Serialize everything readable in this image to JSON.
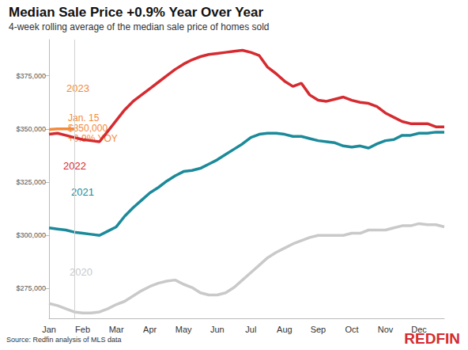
{
  "chart_data": {
    "type": "line",
    "title": "Median Sale Price +0.9% Year Over Year",
    "subtitle": "4-week rolling average of the median sale price of homes sold",
    "source": "Source: Redfin analysis of MLS data",
    "logo": "REDFIN",
    "annotation": [
      "Jan. 15",
      "$350,000",
      "+0.9% YOY"
    ],
    "categories": [
      "Jan",
      null,
      null,
      null,
      "Feb",
      null,
      null,
      null,
      "Mar",
      null,
      null,
      null,
      "Apr",
      null,
      null,
      null,
      "May",
      null,
      null,
      null,
      "Jun",
      null,
      null,
      null,
      "Jul",
      null,
      null,
      null,
      "Aug",
      null,
      null,
      null,
      "Sep",
      null,
      null,
      null,
      "Oct",
      null,
      null,
      null,
      "Nov",
      null,
      null,
      null,
      "Dec",
      null,
      null,
      null
    ],
    "series": [
      {
        "name": "2020",
        "color": "#c9c9c9",
        "values": [
          268000,
          267000,
          265500,
          264000,
          263500,
          263500,
          264000,
          265500,
          267500,
          269000,
          271500,
          274000,
          276000,
          277500,
          278500,
          279000,
          277000,
          275500,
          273000,
          272000,
          272000,
          273000,
          275500,
          279000,
          282500,
          286000,
          289500,
          292000,
          294000,
          296000,
          297500,
          299000,
          300000,
          300000,
          300000,
          300000,
          301000,
          301000,
          302500,
          302500,
          302500,
          303500,
          304500,
          304500,
          305500,
          305000,
          305000,
          304000
        ]
      },
      {
        "name": "2021",
        "color": "#1b8a9a",
        "values": [
          303500,
          303000,
          302500,
          301500,
          301000,
          300500,
          300000,
          302000,
          304000,
          309000,
          313000,
          316500,
          320000,
          322500,
          325500,
          328000,
          330000,
          330500,
          331500,
          333500,
          335500,
          338000,
          340500,
          343000,
          346000,
          347500,
          348000,
          348000,
          347500,
          346500,
          346500,
          345500,
          344500,
          344000,
          343500,
          342000,
          341500,
          342000,
          341000,
          343000,
          344500,
          345000,
          347000,
          347000,
          348000,
          348000,
          348500,
          348500
        ]
      },
      {
        "name": "2022",
        "color": "#d52b30",
        "values": [
          347500,
          348000,
          347000,
          346000,
          345000,
          344500,
          344000,
          349000,
          354000,
          359000,
          363000,
          366000,
          369000,
          372000,
          375000,
          378000,
          380500,
          382500,
          384000,
          385000,
          385500,
          386000,
          386500,
          387000,
          386000,
          384500,
          379000,
          376000,
          372500,
          370000,
          371500,
          366000,
          363500,
          363000,
          364000,
          365000,
          363500,
          362500,
          362000,
          360500,
          357500,
          355500,
          353500,
          352500,
          352500,
          352500,
          351000,
          351000
        ]
      },
      {
        "name": "2023",
        "color": "#f5893a",
        "values": [
          349800,
          350000,
          350000,
          350000,
          null,
          null,
          null,
          null,
          null,
          null,
          null,
          null,
          null,
          null,
          null,
          null,
          null,
          null,
          null,
          null,
          null,
          null,
          null,
          null,
          null,
          null,
          null,
          null,
          null,
          null,
          null,
          null,
          null,
          null,
          null,
          null,
          null,
          null,
          null,
          null,
          null,
          null,
          null,
          null,
          null,
          null,
          null,
          null
        ]
      }
    ],
    "ylim": [
      261000,
      392000
    ],
    "yticks": [
      {
        "value": 275000,
        "label": "$275,000"
      },
      {
        "value": 300000,
        "label": "$300,000"
      },
      {
        "value": 325000,
        "label": "$325,000"
      },
      {
        "value": 350000,
        "label": "$350,000"
      },
      {
        "value": 375000,
        "label": "$375,000"
      }
    ],
    "grid": false
  }
}
